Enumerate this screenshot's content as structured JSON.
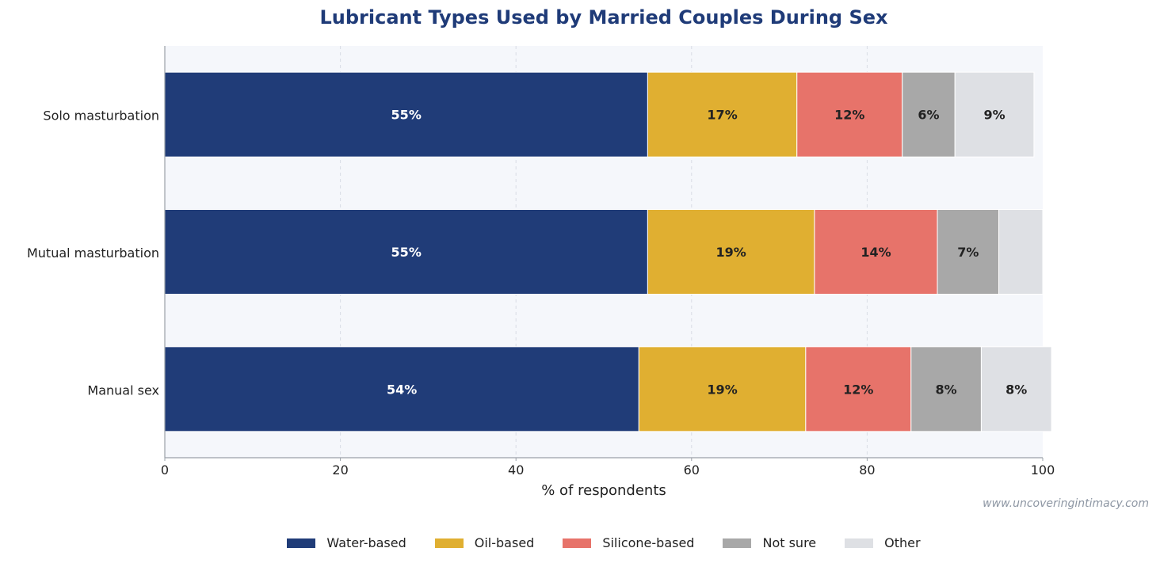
{
  "chart_data": {
    "type": "bar",
    "orientation": "horizontal",
    "stacked": true,
    "title": "Lubricant Types Used by Married Couples During Sex",
    "xlabel": "% of respondents",
    "ylabel": "",
    "xlim": [
      0,
      100
    ],
    "x_ticks": [
      "0",
      "20",
      "40",
      "60",
      "80",
      "100"
    ],
    "grid": "vertical dashed",
    "legend_placement": "bottom-center",
    "categories": [
      "Solo masturbation",
      "Mutual masturbation",
      "Manual sex"
    ],
    "series": [
      {
        "name": "Water-based",
        "color": "#203c78",
        "values": [
          55,
          55,
          54
        ],
        "labels": [
          "55%",
          "55%",
          "54%"
        ]
      },
      {
        "name": "Oil-based",
        "color": "#e0af31",
        "values": [
          17,
          19,
          19
        ],
        "labels": [
          "17%",
          "19%",
          "19%"
        ]
      },
      {
        "name": "Silicone-based",
        "color": "#e7736a",
        "values": [
          12,
          14,
          12
        ],
        "labels": [
          "12%",
          "14%",
          "12%"
        ]
      },
      {
        "name": "Not sure",
        "color": "#a8a8a8",
        "values": [
          6,
          7,
          8
        ],
        "labels": [
          "6%",
          "7%",
          "8%"
        ]
      },
      {
        "name": "Other",
        "color": "#dee0e4",
        "values": [
          9,
          5,
          8
        ],
        "labels": [
          "9%",
          "",
          "8%"
        ]
      }
    ],
    "watermark": "www.uncoveringintimacy.com"
  }
}
